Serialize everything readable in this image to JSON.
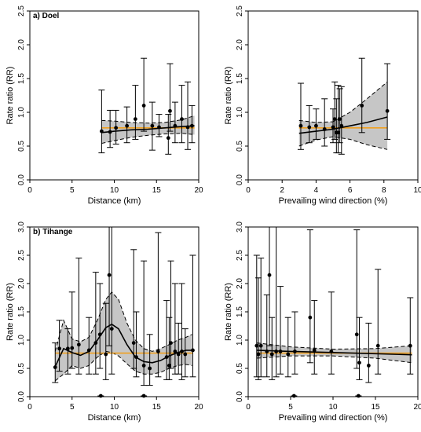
{
  "chart_data": [
    {
      "type": "scatter",
      "panel_label": "a) Doel",
      "xlabel": "Distance (km)",
      "ylabel": "Rate ratio (RR)",
      "xlim": [
        0,
        20
      ],
      "ylim": [
        0,
        2.5
      ],
      "xticks": [
        "0",
        "5",
        "10",
        "15",
        "20"
      ],
      "yticks": [
        "0.0",
        "0.5",
        "1.0",
        "1.5",
        "2.0",
        "2.5"
      ],
      "points": [
        {
          "x": 8.5,
          "y": 0.72,
          "lo": 0.4,
          "hi": 1.33
        },
        {
          "x": 9.5,
          "y": 0.71,
          "lo": 0.48,
          "hi": 1.03
        },
        {
          "x": 10.2,
          "y": 0.77,
          "lo": 0.53,
          "hi": 1.03
        },
        {
          "x": 11.5,
          "y": 0.8,
          "lo": 0.55,
          "hi": 1.08
        },
        {
          "x": 12.5,
          "y": 0.9,
          "lo": 0.6,
          "hi": 1.4
        },
        {
          "x": 13.5,
          "y": 1.1,
          "lo": 0.72,
          "hi": 1.8
        },
        {
          "x": 14.5,
          "y": 0.8,
          "lo": 0.44,
          "hi": 1.15
        },
        {
          "x": 15.3,
          "y": 0.78,
          "lo": 0.64,
          "hi": 0.97
        },
        {
          "x": 16.4,
          "y": 0.62,
          "lo": 0.38,
          "hi": 0.97
        },
        {
          "x": 16.6,
          "y": 1.02,
          "lo": 0.72,
          "hi": 1.72
        },
        {
          "x": 17.2,
          "y": 0.8,
          "lo": 0.55,
          "hi": 1.15
        },
        {
          "x": 18.0,
          "y": 0.9,
          "lo": 0.55,
          "hi": 1.4
        },
        {
          "x": 18.7,
          "y": 0.78,
          "lo": 0.45,
          "hi": 1.45
        },
        {
          "x": 19.2,
          "y": 0.8,
          "lo": 0.55,
          "hi": 1.1
        }
      ],
      "fit_line": [
        [
          8.5,
          0.7
        ],
        [
          10,
          0.72
        ],
        [
          12,
          0.74
        ],
        [
          14,
          0.75
        ],
        [
          16,
          0.77
        ],
        [
          18,
          0.79
        ],
        [
          19.5,
          0.8
        ]
      ],
      "band_upper": [
        [
          8.5,
          0.88
        ],
        [
          10,
          0.87
        ],
        [
          12,
          0.85
        ],
        [
          14,
          0.84
        ],
        [
          16,
          0.85
        ],
        [
          18,
          0.89
        ],
        [
          19.5,
          0.95
        ]
      ],
      "band_lower": [
        [
          8.5,
          0.54
        ],
        [
          10,
          0.58
        ],
        [
          12,
          0.63
        ],
        [
          14,
          0.66
        ],
        [
          16,
          0.68
        ],
        [
          18,
          0.69
        ],
        [
          19.5,
          0.67
        ]
      ],
      "reference_line": {
        "x": [
          8.5,
          19.5
        ],
        "y": 0.77
      },
      "zero_points": []
    },
    {
      "type": "scatter",
      "panel_label": "",
      "xlabel": "Prevailing wind direction (%)",
      "ylabel": "Rate ratio (RR)",
      "xlim": [
        0,
        10
      ],
      "ylim": [
        0,
        2.5
      ],
      "xticks": [
        "0",
        "2",
        "4",
        "6",
        "8",
        "10"
      ],
      "yticks": [
        "0.0",
        "0.5",
        "1.0",
        "1.5",
        "2.0",
        "2.5"
      ],
      "points": [
        {
          "x": 3.1,
          "y": 0.8,
          "lo": 0.45,
          "hi": 1.43
        },
        {
          "x": 3.6,
          "y": 0.78,
          "lo": 0.55,
          "hi": 1.1
        },
        {
          "x": 4.0,
          "y": 0.8,
          "lo": 0.6,
          "hi": 1.05
        },
        {
          "x": 4.5,
          "y": 0.75,
          "lo": 0.5,
          "hi": 1.2
        },
        {
          "x": 5.0,
          "y": 0.78,
          "lo": 0.55,
          "hi": 1.05
        },
        {
          "x": 5.1,
          "y": 0.9,
          "lo": 0.6,
          "hi": 1.45
        },
        {
          "x": 5.2,
          "y": 0.7,
          "lo": 0.4,
          "hi": 1.2
        },
        {
          "x": 5.3,
          "y": 0.7,
          "lo": 0.4,
          "hi": 1.4
        },
        {
          "x": 5.4,
          "y": 0.9,
          "lo": 0.55,
          "hi": 1.35
        },
        {
          "x": 5.5,
          "y": 0.8,
          "lo": 0.38,
          "hi": 1.38
        },
        {
          "x": 6.7,
          "y": 1.1,
          "lo": 0.7,
          "hi": 1.8
        },
        {
          "x": 8.2,
          "y": 1.02,
          "lo": 0.6,
          "hi": 1.72
        }
      ],
      "fit_line": [
        [
          3,
          0.69
        ],
        [
          4,
          0.72
        ],
        [
          5,
          0.75
        ],
        [
          6,
          0.8
        ],
        [
          7,
          0.85
        ],
        [
          8.2,
          0.93
        ]
      ],
      "band_upper": [
        [
          3,
          0.88
        ],
        [
          4,
          0.85
        ],
        [
          5,
          0.86
        ],
        [
          6,
          1.0
        ],
        [
          7,
          1.2
        ],
        [
          8.2,
          1.45
        ]
      ],
      "band_lower": [
        [
          3,
          0.5
        ],
        [
          4,
          0.59
        ],
        [
          5,
          0.64
        ],
        [
          6,
          0.6
        ],
        [
          7,
          0.52
        ],
        [
          8.2,
          0.45
        ]
      ],
      "reference_line": {
        "x": [
          3,
          8.2
        ],
        "y": 0.77
      },
      "zero_points": []
    },
    {
      "type": "scatter",
      "panel_label": "b) Tihange",
      "xlabel": "Distance (km)",
      "ylabel": "Rate ratio (RR)",
      "xlim": [
        0,
        20
      ],
      "ylim": [
        0,
        3.0
      ],
      "xticks": [
        "0",
        "5",
        "10",
        "15",
        "20"
      ],
      "yticks": [
        "0.0",
        "0.5",
        "1.0",
        "1.5",
        "2.0",
        "2.5",
        "3.0"
      ],
      "points": [
        {
          "x": 3.0,
          "y": 0.52,
          "lo": 0.25,
          "hi": 0.95
        },
        {
          "x": 3.5,
          "y": 0.85,
          "lo": 0.45,
          "hi": 1.35
        },
        {
          "x": 4.5,
          "y": 0.85,
          "lo": 0.4,
          "hi": 1.2
        },
        {
          "x": 5.0,
          "y": 0.86,
          "lo": 0.5,
          "hi": 1.85
        },
        {
          "x": 5.8,
          "y": 0.92,
          "lo": 0.4,
          "hi": 2.45
        },
        {
          "x": 7.0,
          "y": 0.82,
          "lo": 0.4,
          "hi": 1.4
        },
        {
          "x": 7.8,
          "y": 0.95,
          "lo": 0.4,
          "hi": 2.2
        },
        {
          "x": 8.3,
          "y": 1.1,
          "lo": 0.5,
          "hi": 2.0
        },
        {
          "x": 9.0,
          "y": 0.75,
          "lo": 0.3,
          "hi": 1.65
        },
        {
          "x": 9.4,
          "y": 2.15,
          "lo": 0.9,
          "hi": 3.0
        },
        {
          "x": 9.7,
          "y": 1.2,
          "lo": 0.4,
          "hi": 3.0
        },
        {
          "x": 12.3,
          "y": 0.95,
          "lo": 0.5,
          "hi": 2.6
        },
        {
          "x": 12.6,
          "y": 0.7,
          "lo": 0.35,
          "hi": 1.5
        },
        {
          "x": 13.5,
          "y": 0.55,
          "lo": 0.2,
          "hi": 2.4
        },
        {
          "x": 14.2,
          "y": 0.5,
          "lo": 0.2,
          "hi": 1.1
        },
        {
          "x": 15.2,
          "y": 0.8,
          "lo": 0.35,
          "hi": 2.9
        },
        {
          "x": 16.2,
          "y": 0.7,
          "lo": 0.3,
          "hi": 1.7
        },
        {
          "x": 16.5,
          "y": 0.55,
          "lo": 0.3,
          "hi": 1.4
        },
        {
          "x": 16.7,
          "y": 0.95,
          "lo": 0.5,
          "hi": 2.4
        },
        {
          "x": 17.2,
          "y": 0.8,
          "lo": 0.4,
          "hi": 2.0
        },
        {
          "x": 17.6,
          "y": 0.75,
          "lo": 0.4,
          "hi": 1.3
        },
        {
          "x": 18.0,
          "y": 0.8,
          "lo": 0.3,
          "hi": 2.0
        },
        {
          "x": 18.4,
          "y": 0.75,
          "lo": 0.35,
          "hi": 1.2
        },
        {
          "x": 19.3,
          "y": 0.82,
          "lo": 0.35,
          "hi": 2.5
        }
      ],
      "fit_line": [
        [
          3,
          0.53
        ],
        [
          4,
          0.85
        ],
        [
          5,
          0.78
        ],
        [
          6,
          0.73
        ],
        [
          7,
          0.8
        ],
        [
          8,
          1.0
        ],
        [
          9,
          1.22
        ],
        [
          9.7,
          1.28
        ],
        [
          10.5,
          1.2
        ],
        [
          11.5,
          0.92
        ],
        [
          12.5,
          0.7
        ],
        [
          13.5,
          0.62
        ],
        [
          14.5,
          0.6
        ],
        [
          15.5,
          0.64
        ],
        [
          16.5,
          0.72
        ],
        [
          17.5,
          0.78
        ],
        [
          18.5,
          0.82
        ],
        [
          19.2,
          0.82
        ]
      ],
      "band_upper": [
        [
          3,
          0.8
        ],
        [
          4,
          1.35
        ],
        [
          5,
          1.02
        ],
        [
          6,
          0.97
        ],
        [
          7,
          1.05
        ],
        [
          8,
          1.35
        ],
        [
          9,
          1.72
        ],
        [
          9.7,
          1.85
        ],
        [
          10.5,
          1.72
        ],
        [
          11.5,
          1.3
        ],
        [
          12.5,
          1.0
        ],
        [
          13.5,
          0.85
        ],
        [
          14.5,
          0.8
        ],
        [
          15.5,
          0.85
        ],
        [
          16.5,
          0.92
        ],
        [
          17.5,
          1.0
        ],
        [
          18.5,
          1.05
        ],
        [
          19.2,
          1.1
        ]
      ],
      "band_lower": [
        [
          3,
          0.28
        ],
        [
          4,
          0.4
        ],
        [
          5,
          0.55
        ],
        [
          6,
          0.5
        ],
        [
          7,
          0.55
        ],
        [
          8,
          0.7
        ],
        [
          9,
          0.8
        ],
        [
          9.7,
          0.78
        ],
        [
          10.5,
          0.72
        ],
        [
          11.5,
          0.58
        ],
        [
          12.5,
          0.45
        ],
        [
          13.5,
          0.4
        ],
        [
          14.5,
          0.4
        ],
        [
          15.5,
          0.43
        ],
        [
          16.5,
          0.5
        ],
        [
          17.5,
          0.55
        ],
        [
          18.5,
          0.57
        ],
        [
          19.2,
          0.55
        ]
      ],
      "reference_line": {
        "x": [
          3,
          19.3
        ],
        "y": 0.77
      },
      "zero_points": [
        8.4,
        13.5
      ]
    },
    {
      "type": "scatter",
      "panel_label": "",
      "xlabel": "Prevailing wind direction (%)",
      "ylabel": "Rate ratio (RR)",
      "xlim": [
        0,
        20
      ],
      "ylim": [
        0,
        3.0
      ],
      "xticks": [
        "0",
        "5",
        "10",
        "15",
        "20"
      ],
      "yticks": [
        "0.0",
        "0.5",
        "1.0",
        "1.5",
        "2.0",
        "2.5",
        "3.0"
      ],
      "points": [
        {
          "x": 1.0,
          "y": 0.9,
          "lo": 0.35,
          "hi": 2.5
        },
        {
          "x": 1.2,
          "y": 0.75,
          "lo": 0.3,
          "hi": 2.1
        },
        {
          "x": 1.5,
          "y": 0.9,
          "lo": 0.35,
          "hi": 2.45
        },
        {
          "x": 2.2,
          "y": 0.8,
          "lo": 0.35,
          "hi": 1.8
        },
        {
          "x": 2.5,
          "y": 2.15,
          "lo": 0.9,
          "hi": 3.0
        },
        {
          "x": 2.8,
          "y": 0.75,
          "lo": 0.3,
          "hi": 1.4
        },
        {
          "x": 3.3,
          "y": 0.8,
          "lo": 0.35,
          "hi": 3.0
        },
        {
          "x": 3.8,
          "y": 0.8,
          "lo": 0.4,
          "hi": 1.95
        },
        {
          "x": 4.7,
          "y": 0.75,
          "lo": 0.35,
          "hi": 1.4
        },
        {
          "x": 5.5,
          "y": 0.8,
          "lo": 0.4,
          "hi": 1.5
        },
        {
          "x": 7.3,
          "y": 1.4,
          "lo": 0.6,
          "hi": 2.95
        },
        {
          "x": 7.8,
          "y": 0.82,
          "lo": 0.4,
          "hi": 1.7
        },
        {
          "x": 9.8,
          "y": 0.8,
          "lo": 0.4,
          "hi": 1.85
        },
        {
          "x": 12.8,
          "y": 1.1,
          "lo": 0.5,
          "hi": 2.95
        },
        {
          "x": 13.1,
          "y": 0.6,
          "lo": 0.3,
          "hi": 1.4
        },
        {
          "x": 14.2,
          "y": 0.55,
          "lo": 0.25,
          "hi": 1.3
        },
        {
          "x": 15.3,
          "y": 0.9,
          "lo": 0.4,
          "hi": 2.25
        },
        {
          "x": 19.1,
          "y": 0.9,
          "lo": 0.4,
          "hi": 1.75
        }
      ],
      "fit_line": [
        [
          1,
          0.82
        ],
        [
          5,
          0.8
        ],
        [
          10,
          0.78
        ],
        [
          15,
          0.76
        ],
        [
          19.3,
          0.74
        ]
      ],
      "band_upper": [
        [
          1,
          0.95
        ],
        [
          5,
          0.88
        ],
        [
          10,
          0.84
        ],
        [
          15,
          0.85
        ],
        [
          19.3,
          0.9
        ]
      ],
      "band_lower": [
        [
          1,
          0.68
        ],
        [
          5,
          0.72
        ],
        [
          10,
          0.72
        ],
        [
          15,
          0.68
        ],
        [
          19.3,
          0.6
        ]
      ],
      "reference_line": {
        "x": [
          1,
          19.3
        ],
        "y": 0.77
      },
      "zero_points": [
        5.4,
        13.0
      ]
    }
  ]
}
